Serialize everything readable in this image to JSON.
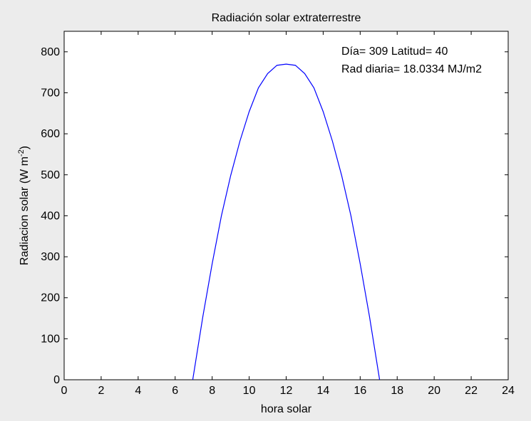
{
  "chart_data": {
    "type": "line",
    "title": "Radiación solar extraterrestre",
    "xlabel": "hora solar",
    "ylabel": "Radiacion solar (W m",
    "ylabel_sup": "-2",
    "ylabel_end": ")",
    "xlim": [
      0,
      24
    ],
    "ylim": [
      0,
      850
    ],
    "xticks": [
      0,
      2,
      4,
      6,
      8,
      10,
      12,
      14,
      16,
      18,
      20,
      22,
      24
    ],
    "yticks": [
      0,
      100,
      200,
      300,
      400,
      500,
      600,
      700,
      800
    ],
    "grid": false,
    "line_color": "#0000ff",
    "annotations": [
      "Día= 309 Latitud= 40",
      "Rad diaria= 18.0334 MJ/m2"
    ],
    "series": [
      {
        "x": [
          6.95,
          7.5,
          8,
          8.5,
          9,
          9.5,
          10,
          10.5,
          11,
          11.5,
          12,
          12.5,
          13,
          13.5,
          14,
          14.5,
          15,
          15.5,
          16,
          16.5,
          17.05
        ],
        "y": [
          0,
          155,
          283,
          400,
          498,
          582,
          654,
          712,
          747,
          767,
          770,
          767,
          747,
          712,
          654,
          582,
          498,
          400,
          283,
          155,
          0
        ]
      }
    ]
  }
}
